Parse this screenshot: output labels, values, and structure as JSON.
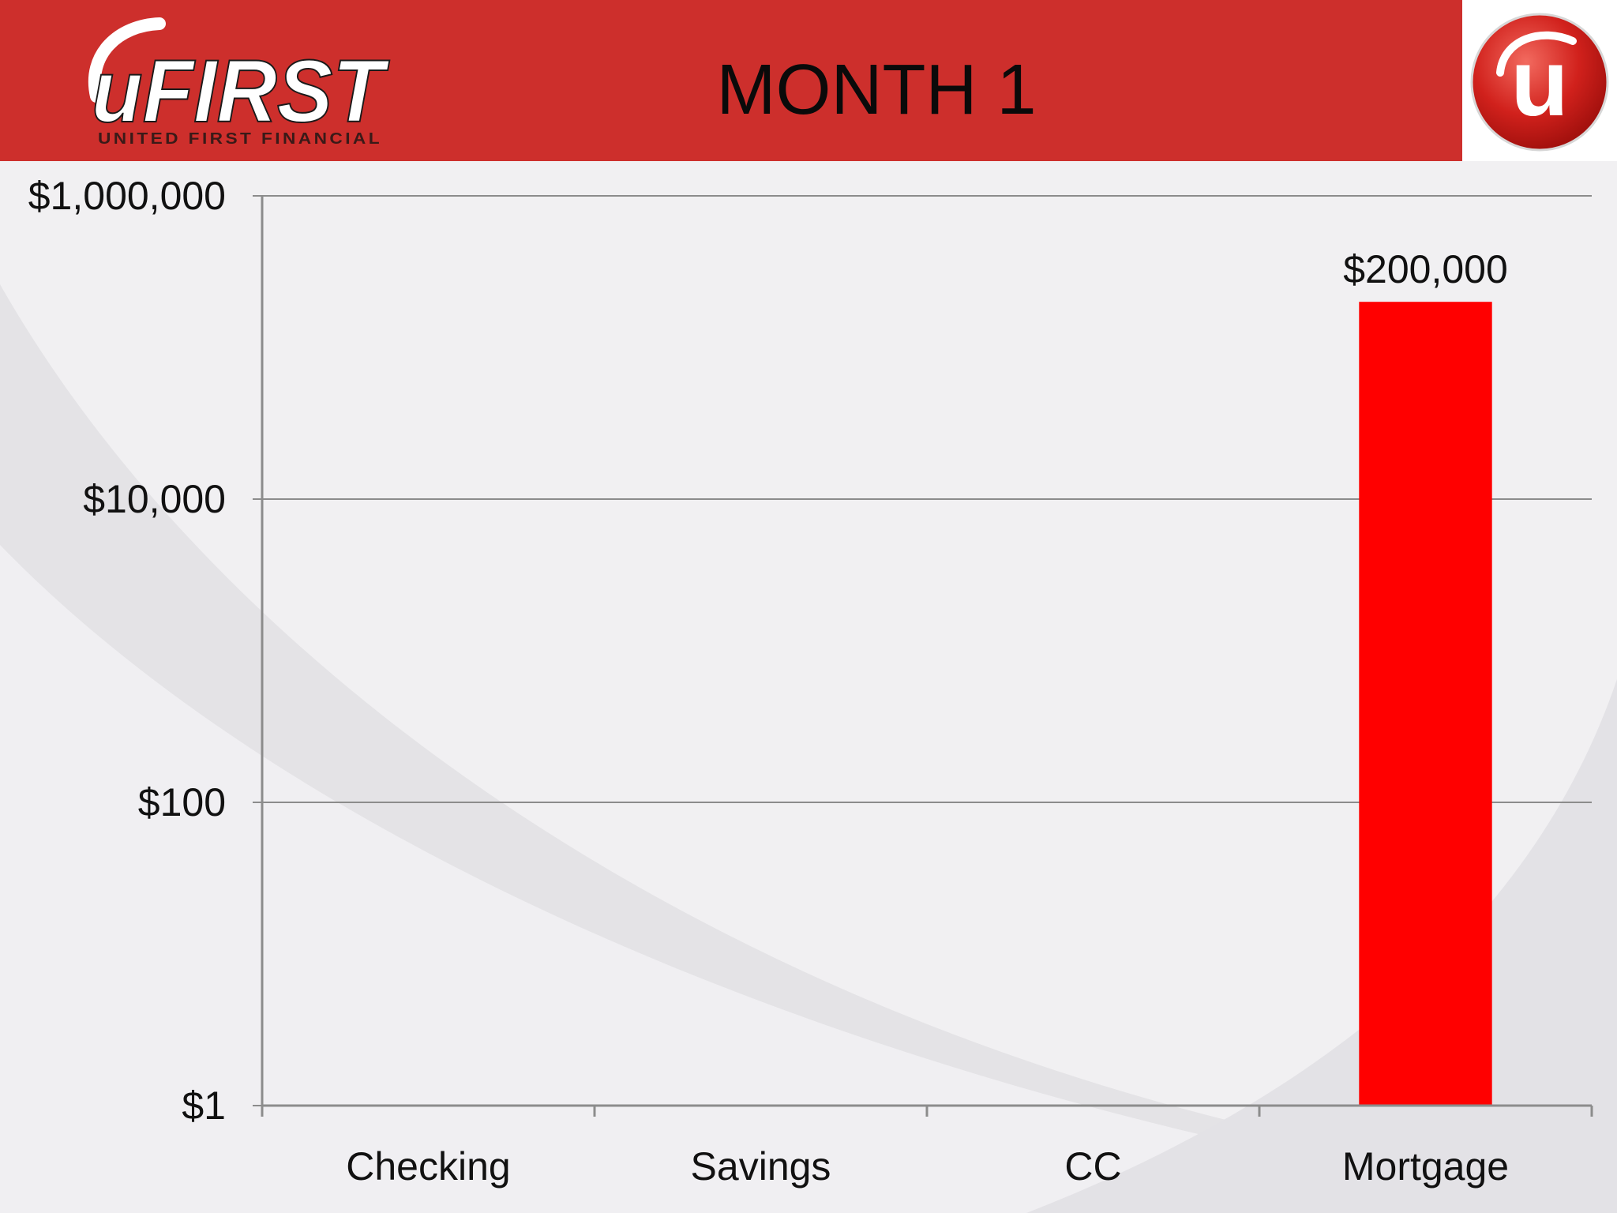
{
  "header": {
    "title": "MONTH 1",
    "logo_text": "uFIRST",
    "logo_subtext": "UNITED FIRST FINANCIAL",
    "logo_mark_text": "u"
  },
  "colors": {
    "header_red": "#cd2f2c",
    "bar_red": "#ff0000"
  },
  "chart_data": {
    "type": "bar",
    "scale": "log",
    "categories": [
      "Checking",
      "Savings",
      "CC",
      "Mortgage"
    ],
    "values": [
      null,
      null,
      null,
      200000
    ],
    "data_labels": [
      "",
      "",
      "",
      "$200,000"
    ],
    "yticks": [
      1,
      100,
      10000,
      1000000
    ],
    "ytick_labels": [
      "$1",
      "$100",
      "$10,000",
      "$1,000,000"
    ],
    "ylim": [
      1,
      1000000
    ],
    "grid": true,
    "legend": "none"
  }
}
